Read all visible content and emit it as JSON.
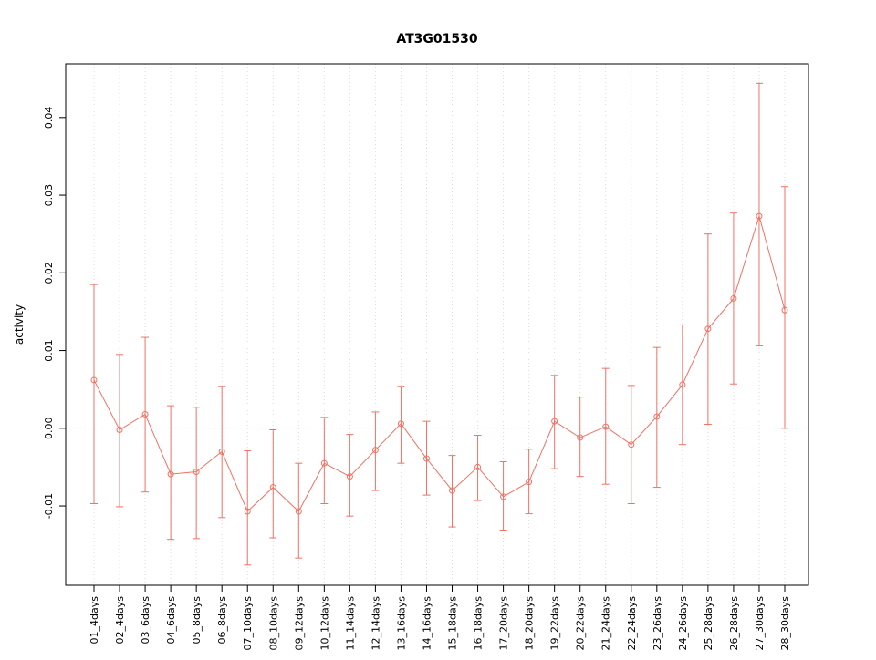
{
  "chart_data": {
    "type": "line",
    "title": "AT3G01530",
    "ylabel": "activity",
    "xlabel": "",
    "legend": "none",
    "grid": "dotted vertical gridline at each category; dotted horizontal line at y=0",
    "color": "#ee7265",
    "grid_color": "#dcdcdc",
    "categories": [
      "01_4days",
      "02_4days",
      "03_6days",
      "04_6days",
      "05_8days",
      "06_8days",
      "07_10days",
      "08_10days",
      "09_12days",
      "10_12days",
      "11_14days",
      "12_14days",
      "13_16days",
      "14_16days",
      "15_18days",
      "16_18days",
      "17_20days",
      "18_20days",
      "19_22days",
      "20_22days",
      "21_24days",
      "22_24days",
      "23_26days",
      "24_26days",
      "25_28days",
      "26_28days",
      "27_30days",
      "28_30days"
    ],
    "series": [
      {
        "name": "mean",
        "values": [
          0.0062,
          -0.0002,
          0.0018,
          -0.0059,
          -0.0056,
          -0.003,
          -0.0107,
          -0.0076,
          -0.0107,
          -0.0045,
          -0.0062,
          -0.0028,
          0.0006,
          -0.0039,
          -0.008,
          -0.005,
          -0.0088,
          -0.0069,
          0.0009,
          -0.0012,
          0.0002,
          -0.0021,
          0.0015,
          0.0056,
          0.0128,
          0.0167,
          0.0273,
          0.0152
        ]
      },
      {
        "name": "upper",
        "values": [
          0.0185,
          0.0095,
          0.0117,
          0.0029,
          0.0027,
          0.0054,
          -0.0029,
          -0.0002,
          -0.0045,
          0.0014,
          -0.0008,
          0.0021,
          0.0054,
          0.0009,
          -0.0035,
          -0.0009,
          -0.0043,
          -0.0027,
          0.0068,
          0.004,
          0.0077,
          0.0055,
          0.0104,
          0.0133,
          0.025,
          0.0277,
          0.0444,
          0.0311
        ]
      },
      {
        "name": "lower",
        "values": [
          -0.0097,
          -0.0101,
          -0.0082,
          -0.0143,
          -0.0142,
          -0.0115,
          -0.0176,
          -0.0141,
          -0.0167,
          -0.0097,
          -0.0113,
          -0.008,
          -0.0045,
          -0.0086,
          -0.0127,
          -0.0093,
          -0.0131,
          -0.011,
          -0.0052,
          -0.0062,
          -0.0072,
          -0.0097,
          -0.0076,
          -0.0021,
          0.0005,
          0.0057,
          0.0106,
          0.0
        ]
      }
    ],
    "y_ticks": [
      "-0.01",
      "0.00",
      "0.01",
      "0.02",
      "0.03",
      "0.04"
    ],
    "ylim": [
      -0.0202,
      0.0469
    ],
    "zero_line": 0
  }
}
